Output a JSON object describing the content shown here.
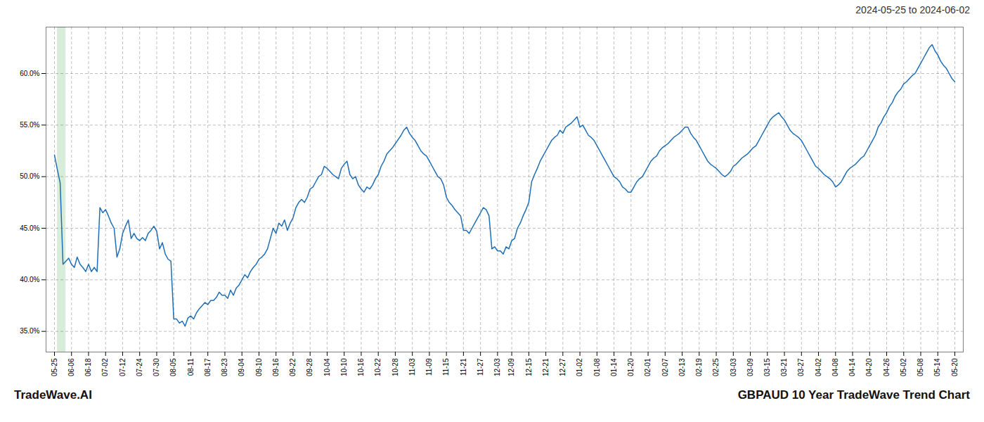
{
  "chart_data": {
    "type": "line",
    "title": "2024-05-25 to 2024-06-02",
    "annotations": [
      "TradeWave.AI",
      "GBPAUD 10 Year TradeWave Trend Chart"
    ],
    "color": "#1f6eb5",
    "grid": true,
    "highlight": {
      "x": [
        1,
        4
      ],
      "color": "#c8e6c9"
    },
    "ylim": [
      0.33,
      0.645
    ],
    "yticks": [
      {
        "value": 0.35,
        "label": "35.0%"
      },
      {
        "value": 0.4,
        "label": "40.0%"
      },
      {
        "value": 0.45,
        "label": "45.0%"
      },
      {
        "value": 0.5,
        "label": "50.0%"
      },
      {
        "value": 0.55,
        "label": "55.0%"
      },
      {
        "value": 0.6,
        "label": "60.0%"
      }
    ],
    "categories": [
      "05-25",
      null,
      null,
      null,
      null,
      null,
      "06-06",
      null,
      null,
      null,
      null,
      null,
      "06-18",
      null,
      null,
      null,
      null,
      null,
      "07-02",
      null,
      null,
      null,
      null,
      null,
      "07-12",
      null,
      null,
      null,
      null,
      null,
      "07-24",
      null,
      null,
      null,
      null,
      null,
      "07-30",
      null,
      null,
      null,
      null,
      null,
      "08-05",
      null,
      null,
      null,
      null,
      null,
      "08-11",
      null,
      null,
      null,
      null,
      null,
      "08-17",
      null,
      null,
      null,
      null,
      null,
      "08-23",
      null,
      null,
      null,
      null,
      null,
      "09-04",
      null,
      null,
      null,
      null,
      null,
      "09-10",
      null,
      null,
      null,
      null,
      null,
      "09-16",
      null,
      null,
      null,
      null,
      null,
      "09-22",
      null,
      null,
      null,
      null,
      null,
      "09-28",
      null,
      null,
      null,
      null,
      null,
      "10-04",
      null,
      null,
      null,
      null,
      null,
      "10-10",
      null,
      null,
      null,
      null,
      null,
      "10-16",
      null,
      null,
      null,
      null,
      null,
      "10-22",
      null,
      null,
      null,
      null,
      null,
      "10-28",
      null,
      null,
      null,
      null,
      null,
      "11-03",
      null,
      null,
      null,
      null,
      null,
      "11-09",
      null,
      null,
      null,
      null,
      null,
      "11-15",
      null,
      null,
      null,
      null,
      null,
      "11-21",
      null,
      null,
      null,
      null,
      null,
      "11-27",
      null,
      null,
      null,
      null,
      null,
      "12-03",
      null,
      null,
      null,
      null,
      "12-09",
      null,
      null,
      null,
      null,
      null,
      "12-15",
      null,
      null,
      null,
      null,
      null,
      "12-21",
      null,
      null,
      null,
      null,
      null,
      "12-27",
      null,
      null,
      null,
      null,
      null,
      "01-02",
      null,
      null,
      null,
      null,
      null,
      "01-08",
      null,
      null,
      null,
      null,
      null,
      "01-14",
      null,
      null,
      null,
      null,
      null,
      "01-20",
      null,
      null,
      null,
      null,
      null,
      "02-01",
      null,
      null,
      null,
      null,
      null,
      "02-07",
      null,
      null,
      null,
      null,
      null,
      "02-13",
      null,
      null,
      null,
      null,
      null,
      "02-19",
      null,
      null,
      null,
      null,
      null,
      "02-25",
      null,
      null,
      null,
      null,
      null,
      "03-03",
      null,
      null,
      null,
      null,
      null,
      "03-09",
      null,
      null,
      null,
      null,
      null,
      "03-15",
      null,
      null,
      null,
      null,
      null,
      "03-21",
      null,
      null,
      null,
      null,
      null,
      "03-27",
      null,
      null,
      null,
      null,
      null,
      "04-02",
      null,
      null,
      null,
      null,
      null,
      "04-08",
      null,
      null,
      null,
      null,
      null,
      "04-14",
      null,
      null,
      null,
      null,
      null,
      "04-20",
      null,
      null,
      null,
      null,
      null,
      "04-26",
      null,
      null,
      null,
      null,
      null,
      "05-02",
      null,
      null,
      null,
      null,
      null,
      "05-08",
      null,
      null,
      null,
      null,
      null,
      "05-14",
      null,
      null,
      null,
      null,
      null,
      "05-20"
    ],
    "values": [
      0.521,
      0.507,
      0.494,
      0.415,
      0.418,
      0.421,
      0.415,
      0.412,
      0.422,
      0.415,
      0.412,
      0.408,
      0.415,
      0.408,
      0.412,
      0.408,
      0.47,
      0.465,
      0.468,
      0.462,
      0.455,
      0.45,
      0.422,
      0.43,
      0.445,
      0.452,
      0.458,
      0.44,
      0.445,
      0.44,
      0.438,
      0.441,
      0.438,
      0.445,
      0.448,
      0.452,
      0.447,
      0.43,
      0.436,
      0.425,
      0.42,
      0.418,
      0.362,
      0.362,
      0.358,
      0.36,
      0.355,
      0.363,
      0.365,
      0.362,
      0.368,
      0.372,
      0.375,
      0.378,
      0.376,
      0.38,
      0.38,
      0.383,
      0.388,
      0.385,
      0.385,
      0.382,
      0.39,
      0.385,
      0.392,
      0.395,
      0.4,
      0.405,
      0.402,
      0.408,
      0.412,
      0.415,
      0.42,
      0.422,
      0.425,
      0.43,
      0.44,
      0.45,
      0.445,
      0.455,
      0.452,
      0.458,
      0.448,
      0.455,
      0.46,
      0.47,
      0.475,
      0.478,
      0.475,
      0.48,
      0.488,
      0.49,
      0.495,
      0.5,
      0.502,
      0.51,
      0.508,
      0.505,
      0.502,
      0.5,
      0.498,
      0.508,
      0.512,
      0.515,
      0.502,
      0.498,
      0.5,
      0.492,
      0.488,
      0.485,
      0.49,
      0.488,
      0.492,
      0.498,
      0.502,
      0.51,
      0.515,
      0.522,
      0.525,
      0.528,
      0.532,
      0.536,
      0.54,
      0.545,
      0.548,
      0.542,
      0.538,
      0.535,
      0.53,
      0.525,
      0.522,
      0.52,
      0.515,
      0.51,
      0.505,
      0.5,
      0.498,
      0.492,
      0.48,
      0.475,
      0.472,
      0.468,
      0.465,
      0.462,
      0.448,
      0.448,
      0.445,
      0.45,
      0.455,
      0.46,
      0.465,
      0.47,
      0.468,
      0.462,
      0.43,
      0.432,
      0.428,
      0.428,
      0.425,
      0.432,
      0.43,
      0.438,
      0.44,
      0.45,
      0.455,
      0.462,
      0.468,
      0.475,
      0.495,
      0.502,
      0.508,
      0.515,
      0.52,
      0.525,
      0.53,
      0.535,
      0.538,
      0.54,
      0.545,
      0.542,
      0.548,
      0.55,
      0.552,
      0.555,
      0.558,
      0.548,
      0.55,
      0.545,
      0.54,
      0.538,
      0.535,
      0.53,
      0.525,
      0.52,
      0.515,
      0.51,
      0.505,
      0.5,
      0.498,
      0.495,
      0.49,
      0.488,
      0.485,
      0.485,
      0.49,
      0.495,
      0.498,
      0.5,
      0.505,
      0.51,
      0.515,
      0.518,
      0.52,
      0.525,
      0.528,
      0.53,
      0.532,
      0.535,
      0.538,
      0.54,
      0.542,
      0.545,
      0.548,
      0.548,
      0.542,
      0.538,
      0.535,
      0.53,
      0.525,
      0.52,
      0.515,
      0.512,
      0.51,
      0.508,
      0.505,
      0.502,
      0.5,
      0.502,
      0.505,
      0.51,
      0.512,
      0.515,
      0.518,
      0.52,
      0.522,
      0.525,
      0.528,
      0.53,
      0.535,
      0.54,
      0.545,
      0.55,
      0.555,
      0.558,
      0.56,
      0.562,
      0.558,
      0.555,
      0.55,
      0.545,
      0.542,
      0.54,
      0.538,
      0.535,
      0.53,
      0.525,
      0.52,
      0.515,
      0.51,
      0.508,
      0.505,
      0.502,
      0.5,
      0.498,
      0.495,
      0.49,
      0.492,
      0.495,
      0.5,
      0.505,
      0.508,
      0.51,
      0.512,
      0.515,
      0.518,
      0.52,
      0.525,
      0.53,
      0.535,
      0.54,
      0.548,
      0.552,
      0.558,
      0.562,
      0.568,
      0.572,
      0.578,
      0.582,
      0.585,
      0.59,
      0.592,
      0.595,
      0.598,
      0.6,
      0.605,
      0.61,
      0.615,
      0.62,
      0.625,
      0.628,
      0.622,
      0.618,
      0.612,
      0.608,
      0.605,
      0.6,
      0.595,
      0.592
    ]
  }
}
